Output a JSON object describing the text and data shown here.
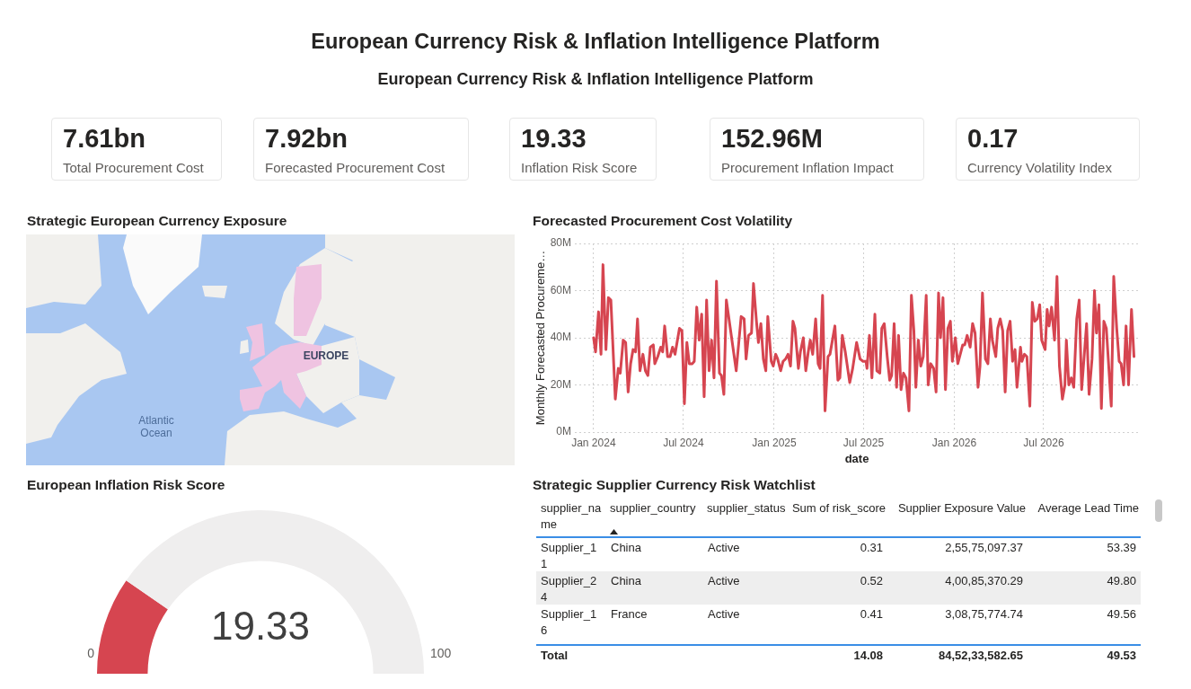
{
  "chart_data": [
    {
      "type": "other",
      "title": "European Currency Risk & Inflation Intelligence Platform",
      "subtitle": "European Currency Risk & Inflation Intelligence Platform",
      "categories": [
        "Total Procurement Cost",
        "Forecasted Procurement Cost",
        "Inflation Risk Score",
        "Procurement Inflation Impact",
        "Currency Volatility Index"
      ],
      "value_labels": [
        "7.61bn",
        "7.92bn",
        "19.33",
        "152.96M",
        "0.17"
      ]
    },
    {
      "type": "other",
      "title": "Strategic European Currency Exposure",
      "annotations": [
        "EUROPE",
        "Atlantic Ocean"
      ]
    },
    {
      "type": "line",
      "title": "Forecasted Procurement Cost Volatility",
      "xlabel": "date",
      "ylabel": "Monthly Forecasted Procureme…",
      "color": "#d64550",
      "x": [
        "2024-01-01",
        "2024-01-05",
        "2024-01-11",
        "2024-01-16",
        "2024-01-20",
        "2024-01-26",
        "2024-01-31",
        "2024-02-05",
        "2024-02-14",
        "2024-02-20",
        "2024-02-24",
        "2024-03-01",
        "2024-03-06",
        "2024-03-11",
        "2024-03-16",
        "2024-03-21",
        "2024-03-26",
        "2024-03-30",
        "2024-04-04",
        "2024-04-10",
        "2024-04-15",
        "2024-04-20",
        "2024-04-25",
        "2024-05-01",
        "2024-05-04",
        "2024-05-10",
        "2024-05-16",
        "2024-05-20",
        "2024-05-24",
        "2024-05-30",
        "2024-06-04",
        "2024-06-09",
        "2024-06-14",
        "2024-06-23",
        "2024-06-28",
        "2024-07-03",
        "2024-07-08",
        "2024-07-13",
        "2024-07-19",
        "2024-07-23",
        "2024-07-28",
        "2024-08-02",
        "2024-08-07",
        "2024-08-12",
        "2024-08-17",
        "2024-08-22",
        "2024-08-27",
        "2024-09-01",
        "2024-09-06",
        "2024-09-12",
        "2024-09-16",
        "2024-09-21",
        "2024-09-26",
        "2024-10-16",
        "2024-10-26",
        "2024-11-01",
        "2024-11-05",
        "2024-11-10",
        "2024-11-16",
        "2024-11-20",
        "2024-11-26",
        "2024-11-30",
        "2024-12-05",
        "2024-12-10",
        "2024-12-15",
        "2024-12-19",
        "2024-12-26",
        "2024-12-30",
        "2025-01-04",
        "2025-01-08",
        "2025-01-14",
        "2025-01-19",
        "2025-01-24",
        "2025-01-29",
        "2025-02-03",
        "2025-02-08",
        "2025-02-12",
        "2025-02-19",
        "2025-02-23",
        "2025-03-01",
        "2025-03-06",
        "2025-03-11",
        "2025-03-15",
        "2025-03-20",
        "2025-03-26",
        "2025-03-31",
        "2025-04-04",
        "2025-04-09",
        "2025-04-14",
        "2025-04-20",
        "2025-04-24",
        "2025-05-04",
        "2025-05-10",
        "2025-05-14",
        "2025-05-19",
        "2025-05-25",
        "2025-06-03",
        "2025-06-09",
        "2025-06-17",
        "2025-06-24",
        "2025-06-30",
        "2025-07-06",
        "2025-07-08",
        "2025-07-13",
        "2025-07-18",
        "2025-07-24",
        "2025-07-28",
        "2025-08-03",
        "2025-08-07",
        "2025-08-12",
        "2025-08-18",
        "2025-08-23",
        "2025-08-27",
        "2025-09-01",
        "2025-09-06",
        "2025-09-10",
        "2025-09-15",
        "2025-09-20",
        "2025-09-25",
        "2025-10-01",
        "2025-10-06",
        "2025-10-11",
        "2025-10-15",
        "2025-10-20",
        "2025-10-25",
        "2025-10-30",
        "2025-11-05",
        "2025-11-09",
        "2025-11-14",
        "2025-11-20",
        "2025-11-25",
        "2025-11-30",
        "2025-12-04",
        "2025-12-09",
        "2025-12-14",
        "2025-12-19",
        "2025-12-24",
        "2025-12-28",
        "2026-01-03",
        "2026-01-08",
        "2026-01-13",
        "2026-01-18",
        "2026-01-22",
        "2026-01-27",
        "2026-02-02",
        "2026-02-07",
        "2026-02-12",
        "2026-02-18",
        "2026-02-22",
        "2026-02-27",
        "2026-03-05",
        "2026-03-10",
        "2026-03-15",
        "2026-03-19",
        "2026-03-26",
        "2026-03-30",
        "2026-04-04",
        "2026-04-09",
        "2026-04-14",
        "2026-04-19",
        "2026-04-24",
        "2026-04-29",
        "2026-05-04",
        "2026-05-08",
        "2026-05-15",
        "2026-05-18",
        "2026-05-23",
        "2026-05-28",
        "2026-06-03",
        "2026-06-08",
        "2026-06-13",
        "2026-06-18",
        "2026-06-23",
        "2026-06-27",
        "2026-07-04",
        "2026-07-08",
        "2026-07-12",
        "2026-07-17",
        "2026-07-23",
        "2026-07-28",
        "2026-08-02",
        "2026-08-08",
        "2026-08-13",
        "2026-08-16",
        "2026-08-21",
        "2026-08-26",
        "2026-08-31",
        "2026-09-06",
        "2026-09-11",
        "2026-09-16",
        "2026-09-21",
        "2026-09-26",
        "2026-10-01",
        "2026-10-07",
        "2026-10-12",
        "2026-10-16",
        "2026-10-21",
        "2026-10-26",
        "2026-10-31",
        "2026-11-05",
        "2026-11-15",
        "2026-11-20",
        "2026-11-26",
        "2026-12-01",
        "2026-12-05",
        "2026-12-10",
        "2026-12-15",
        "2026-12-20",
        "2026-12-26",
        "2026-12-31"
      ],
      "values": [
        40,
        34,
        51,
        33,
        71,
        35,
        57,
        56,
        14,
        27,
        25,
        39,
        38,
        17,
        29,
        35,
        34,
        48,
        26,
        33,
        26,
        24,
        36,
        37,
        29,
        32,
        36,
        34,
        45,
        32,
        32,
        36,
        33,
        44,
        43,
        12,
        38,
        29,
        29,
        30,
        53,
        39,
        50,
        15,
        56,
        26,
        39,
        23,
        64,
        25,
        24,
        16,
        56,
        26,
        49,
        48,
        31,
        41,
        42,
        63,
        47,
        38,
        46,
        31,
        26,
        49,
        30,
        28,
        33,
        31,
        26,
        30,
        31,
        33,
        28,
        47,
        44,
        27,
        34,
        40,
        26,
        34,
        39,
        33,
        48,
        29,
        27,
        58,
        9,
        32,
        33,
        45,
        22,
        23,
        41,
        34,
        21,
        27,
        38,
        31,
        30,
        30,
        27,
        41,
        23,
        50,
        26,
        25,
        44,
        46,
        32,
        22,
        24,
        46,
        19,
        41,
        18,
        25,
        23,
        9,
        58,
        43,
        19,
        39,
        28,
        32,
        58,
        20,
        29,
        27,
        17,
        59,
        40,
        57,
        18,
        44,
        47,
        30,
        40,
        29,
        33,
        37,
        37,
        41,
        36,
        46,
        42,
        19,
        28,
        59,
        31,
        29,
        48,
        39,
        32,
        44,
        48,
        43,
        17,
        43,
        47,
        30,
        35,
        19,
        36,
        30,
        33,
        32,
        11,
        55,
        47,
        48,
        54,
        39,
        35,
        52,
        45,
        53,
        39,
        66,
        28,
        14,
        20,
        39,
        20,
        23,
        19,
        48,
        56,
        18,
        32,
        46,
        16,
        31,
        60,
        42,
        54,
        10,
        47,
        44,
        11,
        66,
        44,
        30,
        29,
        20,
        45,
        20,
        52,
        32
      ],
      "xlim": [
        "2023-11-24",
        "2027-01-10"
      ],
      "xticks": [
        {
          "value": "2024-01-01",
          "label": "Jan 2024"
        },
        {
          "value": "2024-07-01",
          "label": "Jul 2024"
        },
        {
          "value": "2025-01-01",
          "label": "Jan 2025"
        },
        {
          "value": "2025-07-01",
          "label": "Jul 2025"
        },
        {
          "value": "2026-01-01",
          "label": "Jan 2026"
        },
        {
          "value": "2026-07-01",
          "label": "Jul 2026"
        }
      ],
      "ylim": [
        0,
        80
      ],
      "yticks": [
        {
          "value": 0,
          "label": "0M"
        },
        {
          "value": 20,
          "label": "20M"
        },
        {
          "value": 40,
          "label": "40M"
        },
        {
          "value": 60,
          "label": "60M"
        },
        {
          "value": 80,
          "label": "80M"
        }
      ],
      "grid": true
    },
    {
      "type": "donut",
      "title": "European Inflation Risk Score",
      "categories": [
        null,
        null
      ],
      "values": [
        19.33,
        80.67
      ],
      "colors": [
        "#d64550",
        "#efeeee"
      ],
      "annotations": [
        "19.33",
        "0",
        "100"
      ]
    },
    {
      "type": "other",
      "title": "Strategic Supplier Currency Risk Watchlist",
      "categories": [
        "supplier_name",
        "supplier_country",
        "supplier_status",
        "Sum of risk_score",
        "Supplier Exposure Value",
        "Average Lead Time"
      ],
      "cell_labels": [
        [
          "Supplier_11",
          "China",
          "Active",
          "0.31",
          "2,55,75,097.37",
          "53.39"
        ],
        [
          "Supplier_24",
          "China",
          "Active",
          "0.52",
          "4,00,85,370.29",
          "49.80"
        ],
        [
          "Supplier_16",
          "France",
          "Active",
          "0.41",
          "3,08,75,774.74",
          "49.56"
        ],
        [
          "Total",
          null,
          null,
          "14.08",
          "84,52,33,582.65",
          "49.53"
        ]
      ]
    }
  ]
}
